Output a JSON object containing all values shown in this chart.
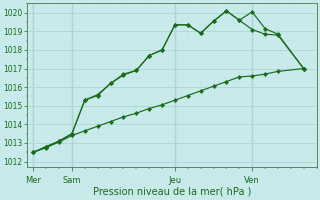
{
  "bg_color": "#c8eaea",
  "grid_color_major": "#b0d8d8",
  "grid_color_minor": "#c0e4e4",
  "line_color": "#1a6b1a",
  "marker_color": "#1a6b1a",
  "ylabel_ticks": [
    1012,
    1013,
    1014,
    1015,
    1016,
    1017,
    1018,
    1019,
    1020
  ],
  "ylim": [
    1011.7,
    1020.5
  ],
  "xlabel": "Pression niveau de la mer( hPa )",
  "xtick_labels": [
    "Mer",
    "Sam",
    "Jeu",
    "Ven"
  ],
  "xtick_positions": [
    0,
    3,
    11,
    17
  ],
  "vline_positions": [
    0,
    3,
    11,
    17
  ],
  "series1_x": [
    0,
    1,
    2,
    3,
    4,
    5,
    6,
    7,
    8,
    9,
    10,
    11,
    12,
    13,
    14,
    15,
    16,
    17,
    18,
    19,
    21
  ],
  "series1_y": [
    1012.5,
    1012.8,
    1013.1,
    1013.5,
    1015.3,
    1015.6,
    1016.2,
    1016.7,
    1016.9,
    1017.7,
    1018.0,
    1019.35,
    1019.35,
    1018.9,
    1019.55,
    1020.1,
    1019.6,
    1020.05,
    1019.15,
    1018.85,
    1017.0
  ],
  "series2_x": [
    0,
    1,
    2,
    3,
    4,
    5,
    6,
    7,
    8,
    9,
    10,
    11,
    12,
    13,
    14,
    15,
    16,
    17,
    18,
    19,
    21
  ],
  "series2_y": [
    1012.5,
    1012.75,
    1013.05,
    1013.4,
    1013.65,
    1013.9,
    1014.15,
    1014.4,
    1014.6,
    1014.85,
    1015.05,
    1015.3,
    1015.55,
    1015.8,
    1016.05,
    1016.3,
    1016.55,
    1016.6,
    1016.7,
    1016.85,
    1017.0
  ],
  "series3_x": [
    0,
    1,
    2,
    3,
    4,
    5,
    6,
    7,
    8,
    9,
    10,
    11,
    12,
    13,
    14,
    15,
    16,
    17,
    18,
    19,
    21
  ],
  "series3_y": [
    1012.5,
    1012.8,
    1013.1,
    1013.5,
    1015.3,
    1015.55,
    1016.2,
    1016.65,
    1016.9,
    1017.7,
    1018.0,
    1019.35,
    1019.35,
    1018.9,
    1019.55,
    1020.1,
    1019.6,
    1019.1,
    1018.85,
    1018.8,
    1017.0
  ],
  "xlim": [
    -0.5,
    22
  ]
}
